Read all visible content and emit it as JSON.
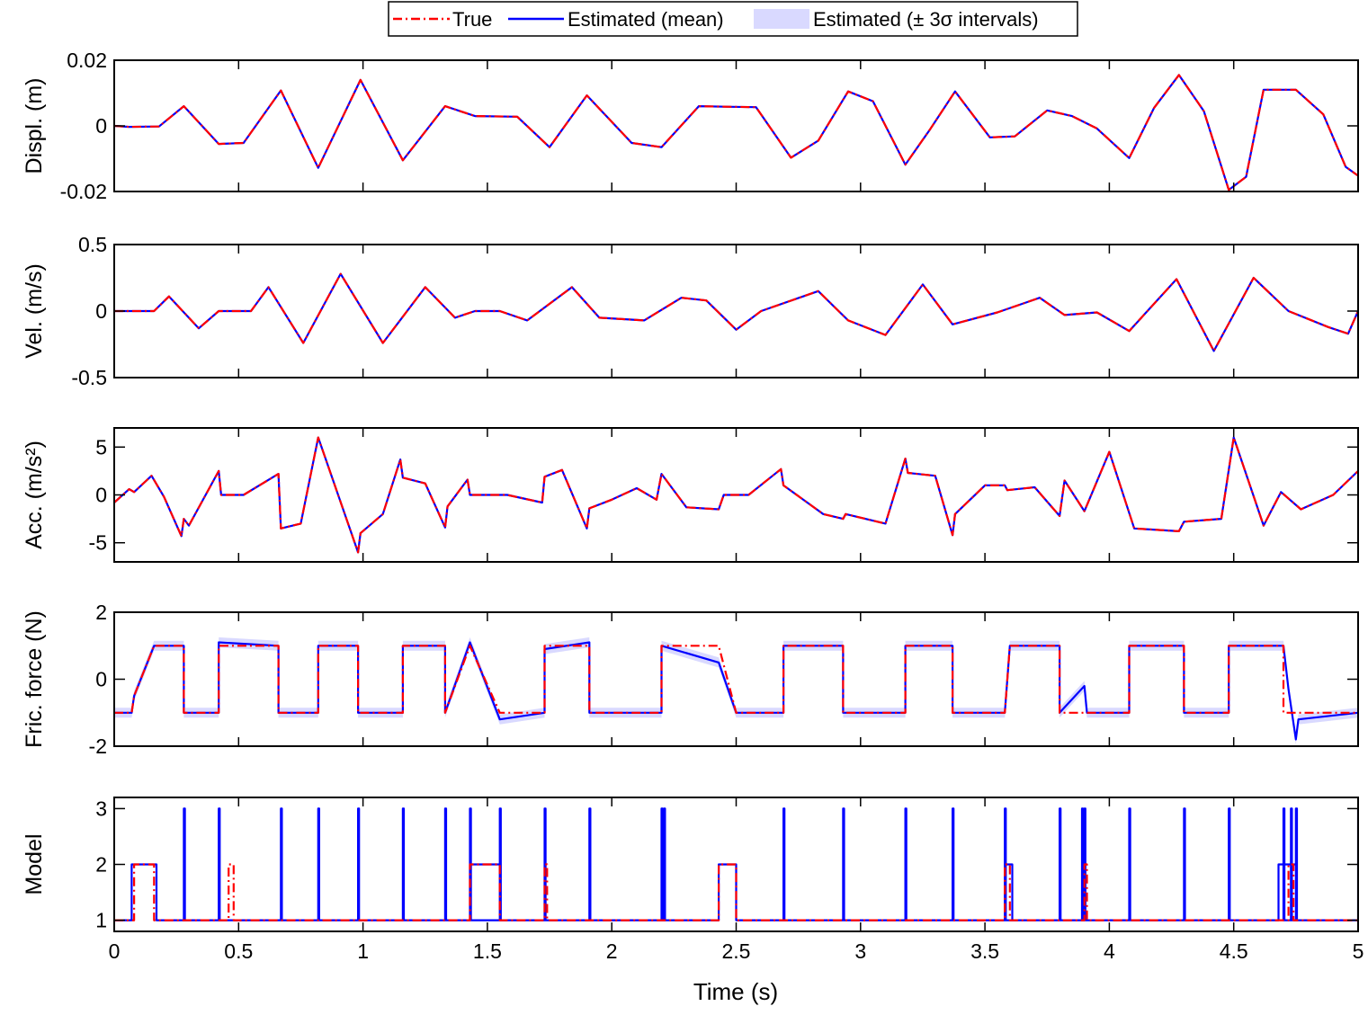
{
  "legend": {
    "entries": [
      {
        "label": "True",
        "color": "#ff0000",
        "style": "dash-dot"
      },
      {
        "label": "Estimated (mean)",
        "color": "#0000ff",
        "style": "solid"
      },
      {
        "label": "Estimated (± 3σ intervals)",
        "color": "#ccccff",
        "style": "patch"
      }
    ]
  },
  "chart_data": [
    {
      "type": "line",
      "ylabel": "Displ. (m)",
      "ylim": [
        -0.02,
        0.02
      ],
      "yticks": [
        -0.02,
        0,
        0.02
      ],
      "ytick_labels": [
        "-0.02",
        "0",
        "0.02"
      ],
      "xlim": [
        0,
        5
      ],
      "series": [
        {
          "name": "True",
          "x": [
            0,
            0.06,
            0.18,
            0.28,
            0.42,
            0.52,
            0.67,
            0.82,
            0.99,
            1.16,
            1.33,
            1.45,
            1.62,
            1.75,
            1.9,
            2.08,
            2.2,
            2.35,
            2.48,
            2.58,
            2.72,
            2.83,
            2.95,
            3.05,
            3.18,
            3.28,
            3.38,
            3.52,
            3.62,
            3.75,
            3.85,
            3.95,
            4.08,
            4.18,
            4.28,
            4.38,
            4.48,
            4.55,
            4.62,
            4.75,
            4.86,
            4.95,
            5.0
          ],
          "y": [
            0,
            -0.0003,
            -0.0002,
            0.006,
            -0.0055,
            -0.0052,
            0.0108,
            -0.0128,
            0.014,
            -0.0105,
            0.006,
            0.003,
            0.0028,
            -0.0065,
            0.0093,
            -0.0052,
            -0.0065,
            0.006,
            0.0058,
            0.0057,
            -0.0097,
            -0.0045,
            0.0105,
            0.0075,
            -0.0118,
            -0.001,
            0.0105,
            -0.0035,
            -0.0032,
            0.0047,
            0.003,
            -0.0008,
            -0.0098,
            0.0055,
            0.0155,
            0.0045,
            -0.0195,
            -0.0155,
            0.011,
            0.011,
            0.0035,
            -0.0125,
            -0.0152
          ]
        },
        {
          "name": "Estimated (mean)",
          "x": [
            0,
            0.06,
            0.18,
            0.28,
            0.42,
            0.52,
            0.67,
            0.82,
            0.99,
            1.16,
            1.33,
            1.45,
            1.62,
            1.75,
            1.9,
            2.08,
            2.2,
            2.35,
            2.48,
            2.58,
            2.72,
            2.83,
            2.95,
            3.05,
            3.18,
            3.28,
            3.38,
            3.52,
            3.62,
            3.75,
            3.85,
            3.95,
            4.08,
            4.18,
            4.28,
            4.38,
            4.48,
            4.55,
            4.62,
            4.75,
            4.86,
            4.95,
            5.0
          ],
          "y": [
            0,
            -0.0003,
            -0.0002,
            0.006,
            -0.0055,
            -0.0052,
            0.0108,
            -0.0128,
            0.014,
            -0.0105,
            0.006,
            0.003,
            0.0028,
            -0.0065,
            0.0093,
            -0.0052,
            -0.0065,
            0.006,
            0.0058,
            0.0057,
            -0.0097,
            -0.0045,
            0.0105,
            0.0075,
            -0.0118,
            -0.001,
            0.0105,
            -0.0035,
            -0.0032,
            0.0047,
            0.003,
            -0.0008,
            -0.0098,
            0.0055,
            0.0155,
            0.0045,
            -0.0195,
            -0.0155,
            0.011,
            0.011,
            0.0035,
            -0.0125,
            -0.0152
          ]
        }
      ]
    },
    {
      "type": "line",
      "ylabel": "Vel. (m/s)",
      "ylim": [
        -0.5,
        0.5
      ],
      "yticks": [
        -0.5,
        0,
        0.5
      ],
      "ytick_labels": [
        "-0.5",
        "0",
        "0.5"
      ],
      "xlim": [
        0,
        5
      ],
      "series": [
        {
          "name": "True",
          "x": [
            0,
            0.16,
            0.22,
            0.34,
            0.42,
            0.55,
            0.62,
            0.76,
            0.91,
            1.08,
            1.25,
            1.37,
            1.45,
            1.55,
            1.66,
            1.84,
            1.95,
            2.13,
            2.28,
            2.38,
            2.5,
            2.6,
            2.83,
            2.95,
            3.1,
            3.25,
            3.37,
            3.55,
            3.72,
            3.82,
            3.95,
            4.08,
            4.27,
            4.42,
            4.58,
            4.72,
            4.88,
            4.96,
            5.0
          ],
          "y": [
            0,
            0,
            0.11,
            -0.13,
            0,
            0,
            0.18,
            -0.24,
            0.28,
            -0.24,
            0.18,
            -0.05,
            0,
            0,
            -0.07,
            0.18,
            -0.05,
            -0.07,
            0.1,
            0.08,
            -0.14,
            0,
            0.15,
            -0.07,
            -0.18,
            0.2,
            -0.1,
            -0.01,
            0.1,
            -0.03,
            -0.01,
            -0.15,
            0.24,
            -0.3,
            0.25,
            0,
            -0.12,
            -0.17,
            0
          ]
        },
        {
          "name": "Estimated (mean)",
          "x": [
            0,
            0.16,
            0.22,
            0.34,
            0.42,
            0.55,
            0.62,
            0.76,
            0.91,
            1.08,
            1.25,
            1.37,
            1.45,
            1.55,
            1.66,
            1.84,
            1.95,
            2.13,
            2.28,
            2.38,
            2.5,
            2.6,
            2.83,
            2.95,
            3.1,
            3.25,
            3.37,
            3.55,
            3.72,
            3.82,
            3.95,
            4.08,
            4.27,
            4.42,
            4.58,
            4.72,
            4.88,
            4.96,
            5.0
          ],
          "y": [
            0,
            0,
            0.11,
            -0.13,
            0,
            0,
            0.18,
            -0.24,
            0.28,
            -0.24,
            0.18,
            -0.05,
            0,
            0,
            -0.07,
            0.18,
            -0.05,
            -0.07,
            0.1,
            0.08,
            -0.14,
            0,
            0.15,
            -0.07,
            -0.18,
            0.2,
            -0.1,
            -0.01,
            0.1,
            -0.03,
            -0.01,
            -0.15,
            0.24,
            -0.3,
            0.25,
            0,
            -0.12,
            -0.17,
            0
          ]
        }
      ]
    },
    {
      "type": "line",
      "ylabel": "Acc. (m/s²)",
      "ylim": [
        -7,
        7
      ],
      "yticks": [
        -5,
        0,
        5
      ],
      "ytick_labels": [
        "-5",
        "0",
        "5"
      ],
      "xlim": [
        0,
        5
      ],
      "series": [
        {
          "name": "True",
          "x": [
            0,
            0.06,
            0.08,
            0.15,
            0.2,
            0.27,
            0.28,
            0.3,
            0.42,
            0.43,
            0.52,
            0.66,
            0.67,
            0.75,
            0.82,
            0.98,
            0.99,
            1.08,
            1.15,
            1.16,
            1.25,
            1.33,
            1.34,
            1.42,
            1.43,
            1.58,
            1.72,
            1.73,
            1.8,
            1.9,
            1.91,
            2.0,
            2.1,
            2.18,
            2.2,
            2.3,
            2.43,
            2.45,
            2.55,
            2.68,
            2.69,
            2.85,
            2.93,
            2.94,
            3.1,
            3.18,
            3.19,
            3.3,
            3.37,
            3.38,
            3.5,
            3.58,
            3.59,
            3.7,
            3.8,
            3.82,
            3.9,
            4.0,
            4.1,
            4.28,
            4.3,
            4.45,
            4.5,
            4.62,
            4.69,
            4.77,
            4.9,
            5.0
          ],
          "y": [
            -0.8,
            0.6,
            0.3,
            2.0,
            -0.2,
            -4.3,
            -2.5,
            -3.2,
            2.5,
            0,
            0,
            2.2,
            -3.5,
            -3.0,
            6.0,
            -6.0,
            -4.0,
            -2.0,
            3.7,
            1.8,
            1.2,
            -3.4,
            -1.2,
            1.6,
            0,
            0,
            -0.8,
            1.9,
            2.6,
            -3.5,
            -1.4,
            -0.5,
            0.7,
            -0.5,
            2.2,
            -1.3,
            -1.5,
            0,
            0,
            2.7,
            1.0,
            -2.0,
            -2.5,
            -2.0,
            -3.0,
            3.8,
            2.3,
            2.0,
            -4.2,
            -2.0,
            1.0,
            1.0,
            0.5,
            0.8,
            -2.2,
            1.5,
            -1.7,
            4.5,
            -3.5,
            -3.8,
            -2.8,
            -2.5,
            6.0,
            -3.2,
            0.3,
            -1.5,
            0,
            2.5
          ]
        },
        {
          "name": "Estimated (mean)",
          "x": [
            0,
            0.06,
            0.08,
            0.15,
            0.2,
            0.27,
            0.28,
            0.3,
            0.42,
            0.43,
            0.52,
            0.66,
            0.67,
            0.75,
            0.82,
            0.98,
            0.99,
            1.08,
            1.15,
            1.16,
            1.25,
            1.33,
            1.34,
            1.42,
            1.43,
            1.58,
            1.72,
            1.73,
            1.8,
            1.9,
            1.91,
            2.0,
            2.1,
            2.18,
            2.2,
            2.3,
            2.43,
            2.45,
            2.55,
            2.68,
            2.69,
            2.85,
            2.93,
            2.94,
            3.1,
            3.18,
            3.19,
            3.3,
            3.37,
            3.38,
            3.5,
            3.58,
            3.59,
            3.7,
            3.8,
            3.82,
            3.9,
            4.0,
            4.1,
            4.28,
            4.3,
            4.45,
            4.5,
            4.62,
            4.69,
            4.77,
            4.9,
            5.0
          ],
          "y": [
            -0.8,
            0.6,
            0.3,
            2.0,
            -0.2,
            -4.3,
            -2.5,
            -3.2,
            2.5,
            0,
            0,
            2.2,
            -3.5,
            -3.0,
            6.0,
            -6.0,
            -4.0,
            -2.0,
            3.7,
            1.8,
            1.2,
            -3.4,
            -1.2,
            1.6,
            0,
            0,
            -0.8,
            1.9,
            2.6,
            -3.5,
            -1.4,
            -0.5,
            0.7,
            -0.5,
            2.2,
            -1.3,
            -1.5,
            0,
            0,
            2.7,
            1.0,
            -2.0,
            -2.5,
            -2.0,
            -3.0,
            3.8,
            2.3,
            2.0,
            -4.2,
            -2.0,
            1.0,
            1.0,
            0.5,
            0.8,
            -2.2,
            1.5,
            -1.7,
            4.5,
            -3.5,
            -3.8,
            -2.8,
            -2.5,
            6.0,
            -3.2,
            0.3,
            -1.5,
            0,
            2.5
          ]
        }
      ]
    },
    {
      "type": "area",
      "ylabel": "Fric. force (N)",
      "ylim": [
        -2,
        2
      ],
      "yticks": [
        -2,
        0,
        2
      ],
      "ytick_labels": [
        "-2",
        "0",
        "2"
      ],
      "xlim": [
        0,
        5
      ],
      "band_halfwidth": 0.15,
      "series": [
        {
          "name": "True",
          "x": [
            0,
            0.07,
            0.08,
            0.16,
            0.28,
            0.28,
            0.42,
            0.42,
            0.66,
            0.66,
            0.82,
            0.82,
            0.98,
            0.98,
            1.16,
            1.16,
            1.33,
            1.33,
            1.43,
            1.55,
            1.73,
            1.73,
            1.91,
            1.91,
            2.2,
            2.2,
            2.43,
            2.5,
            2.69,
            2.69,
            2.93,
            2.93,
            3.18,
            3.18,
            3.37,
            3.37,
            3.58,
            3.6,
            3.8,
            3.8,
            3.9,
            3.91,
            4.08,
            4.08,
            4.3,
            4.3,
            4.48,
            4.48,
            4.7,
            4.7,
            5.0
          ],
          "y": [
            -1,
            -1,
            -0.5,
            1,
            1,
            -1,
            -1,
            1,
            1,
            -1,
            -1,
            1,
            1,
            -1,
            -1,
            1,
            1,
            -1,
            1,
            -1,
            -1,
            1,
            1,
            -1,
            -1,
            1,
            1,
            -1,
            -1,
            1,
            1,
            -1,
            -1,
            1,
            1,
            -1,
            -1,
            1,
            1,
            -1,
            -1,
            -1,
            -1,
            1,
            1,
            -1,
            -1,
            1,
            1,
            -1,
            -1
          ]
        },
        {
          "name": "Estimated (mean)",
          "x": [
            0,
            0.07,
            0.08,
            0.16,
            0.28,
            0.28,
            0.42,
            0.42,
            0.66,
            0.66,
            0.82,
            0.82,
            0.98,
            0.98,
            1.16,
            1.16,
            1.33,
            1.33,
            1.43,
            1.55,
            1.73,
            1.73,
            1.91,
            1.91,
            2.2,
            2.2,
            2.43,
            2.5,
            2.69,
            2.69,
            2.93,
            2.93,
            3.18,
            3.18,
            3.37,
            3.37,
            3.58,
            3.6,
            3.8,
            3.8,
            3.9,
            3.91,
            4.08,
            4.08,
            4.3,
            4.3,
            4.48,
            4.48,
            4.7,
            4.72,
            4.75,
            4.76,
            5.0
          ],
          "y": [
            -1,
            -1,
            -0.5,
            1,
            1,
            -1,
            -1,
            1.1,
            1,
            -1,
            -1,
            1,
            1,
            -1,
            -1,
            1,
            1,
            -1,
            1.1,
            -1.2,
            -1,
            0.9,
            1.1,
            -1,
            -1,
            1,
            0.5,
            -1,
            -1,
            1,
            1,
            -1,
            -1,
            1,
            1,
            -1,
            -1,
            1,
            1,
            -1,
            -0.2,
            -1,
            -1,
            1,
            1,
            -1,
            -1,
            1,
            1,
            -0.3,
            -1.8,
            -1.2,
            -1
          ]
        }
      ]
    },
    {
      "type": "line",
      "ylabel": "Model",
      "ylim": [
        0.8,
        3.2
      ],
      "yticks": [
        1,
        2,
        3
      ],
      "ytick_labels": [
        "1",
        "2",
        "3"
      ],
      "xlim": [
        0,
        5
      ],
      "xticks": [
        0,
        0.5,
        1,
        1.5,
        2,
        2.5,
        3,
        3.5,
        4,
        4.5,
        5
      ],
      "xtick_labels": [
        "0",
        "0.5",
        "1",
        "1.5",
        "2",
        "2.5",
        "3",
        "3.5",
        "4",
        "4.5",
        "5"
      ],
      "xlabel": "Time (s)",
      "series": [
        {
          "name": "True",
          "segments_model_2": [
            [
              0.08,
              0.16
            ],
            [
              0.46,
              0.48
            ],
            [
              1.43,
              1.55
            ],
            [
              1.73,
              1.74
            ],
            [
              2.43,
              2.5
            ],
            [
              3.58,
              3.6
            ],
            [
              3.9,
              3.91
            ],
            [
              4.72,
              4.74
            ]
          ]
        },
        {
          "name": "Estimated (mean)",
          "segments_model_2": [
            [
              0.07,
              0.17
            ],
            [
              1.43,
              1.55
            ],
            [
              2.43,
              2.5
            ],
            [
              3.58,
              3.61
            ],
            [
              4.68,
              4.75
            ]
          ],
          "spikes_model_3": [
            0.28,
            0.42,
            0.67,
            0.82,
            0.98,
            1.16,
            1.33,
            1.43,
            1.55,
            1.73,
            1.91,
            2.2,
            2.21,
            2.69,
            2.93,
            3.18,
            3.37,
            3.58,
            3.8,
            3.89,
            3.9,
            4.08,
            4.3,
            4.48,
            4.7,
            4.73,
            4.75,
            5.0
          ]
        }
      ]
    }
  ]
}
